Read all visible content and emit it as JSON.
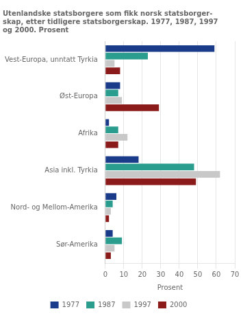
{
  "chart_data": {
    "type": "bar",
    "orientation": "horizontal",
    "title": "Utenlandske statsborgere som fikk norsk statsborger-\nskap, etter tidligere statsborgerskap. 1977, 1987, 1997\nog 2000. Prosent",
    "categories": [
      "Vest-Europa, unntatt Tyrkia",
      "Øst-Europa",
      "Afrika",
      "Asia inkl. Tyrkia",
      "Nord- og Mellom-Amerika",
      "Sør-Amerika"
    ],
    "series": [
      {
        "name": "1977",
        "color": "#1a3a8a",
        "values": [
          59,
          8,
          2,
          18,
          6,
          4
        ]
      },
      {
        "name": "1987",
        "color": "#2a9d8f",
        "values": [
          23,
          7,
          7,
          48,
          4,
          9
        ]
      },
      {
        "name": "1997",
        "color": "#c8c8c8",
        "values": [
          5,
          9,
          12,
          62,
          3,
          5
        ]
      },
      {
        "name": "2000",
        "color": "#8b1a1a",
        "values": [
          8,
          29,
          7,
          49,
          2,
          3
        ]
      }
    ],
    "xlabel": "Prosent",
    "xlim": [
      0,
      70
    ],
    "xticks": [
      0,
      10,
      20,
      30,
      40,
      50,
      60,
      70
    ],
    "grid": true,
    "legend": "bottom"
  }
}
